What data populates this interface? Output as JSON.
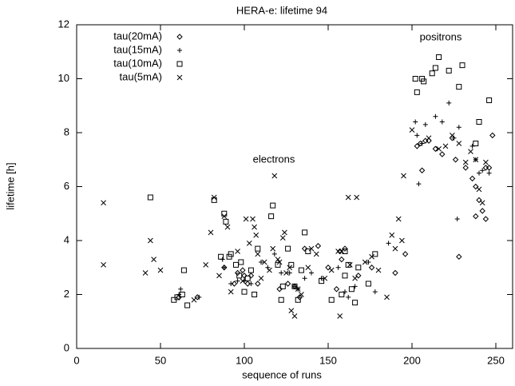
{
  "chart_data": {
    "type": "scatter",
    "title": "HERA-e: lifetime 94",
    "xlabel": "sequence of runs",
    "ylabel": "lifetime [h]",
    "annotations": [
      "electrons",
      "positrons"
    ],
    "xlim": [
      0,
      260
    ],
    "ylim": [
      0,
      12
    ],
    "xticks": [
      0,
      50,
      100,
      150,
      200,
      250
    ],
    "yticks": [
      0,
      2,
      4,
      6,
      8,
      10,
      12
    ],
    "legend": "upper left",
    "series": [
      {
        "name": "tau(20mA)",
        "marker": "diamond",
        "color": "#000000",
        "x": [
          61,
          72,
          88,
          94,
          96,
          99,
          100,
          102,
          104,
          108,
          121,
          126,
          130,
          133,
          136,
          144,
          150,
          155,
          157,
          158,
          160,
          168,
          176,
          190,
          196,
          203,
          205,
          206,
          208,
          210,
          214,
          218,
          224,
          226,
          228,
          232,
          236,
          238,
          240,
          242,
          244,
          244,
          246,
          248,
          238
        ],
        "y": [
          1.9,
          1.9,
          3.0,
          2.4,
          2.8,
          2.9,
          2.7,
          2.4,
          2.7,
          2.4,
          2.2,
          2.4,
          2.3,
          1.9,
          3.7,
          3.8,
          3.0,
          2.2,
          3.6,
          3.3,
          3.7,
          2.7,
          3.0,
          2.8,
          3.5,
          7.5,
          7.6,
          6.6,
          7.7,
          7.7,
          7.4,
          7.2,
          7.8,
          7.0,
          3.4,
          6.7,
          6.3,
          6.0,
          5.5,
          5.1,
          4.8,
          6.7,
          6.7,
          7.9,
          4.9
        ]
      },
      {
        "name": "tau(15mA)",
        "marker": "plus",
        "color": "#000000",
        "x": [
          61,
          62,
          73,
          87,
          88,
          92,
          96,
          100,
          104,
          110,
          114,
          118,
          122,
          127,
          130,
          132,
          136,
          140,
          146,
          156,
          160,
          162,
          166,
          174,
          178,
          186,
          202,
          203,
          204,
          206,
          208,
          214,
          218,
          222,
          225,
          227,
          228,
          236,
          238,
          240,
          242,
          246
        ],
        "y": [
          2.0,
          2.2,
          1.9,
          3.3,
          3.0,
          2.4,
          2.5,
          2.5,
          2.4,
          3.2,
          3.0,
          3.5,
          2.8,
          2.8,
          2.3,
          2.2,
          2.6,
          2.8,
          2.6,
          3.0,
          2.1,
          1.9,
          2.3,
          3.2,
          2.1,
          3.9,
          8.4,
          7.9,
          6.1,
          7.6,
          8.3,
          8.6,
          8.4,
          9.1,
          7.8,
          4.8,
          8.2,
          7.5,
          7.0,
          6.5,
          6.6,
          6.5
        ]
      },
      {
        "name": "tau(10mA)",
        "marker": "square",
        "color": "#000000",
        "x": [
          44,
          58,
          60,
          63,
          64,
          66,
          82,
          86,
          88,
          89,
          91,
          92,
          95,
          97,
          98,
          100,
          102,
          104,
          106,
          108,
          116,
          117,
          120,
          122,
          123,
          126,
          128,
          130,
          132,
          134,
          136,
          138,
          146,
          152,
          158,
          160,
          160,
          162,
          164,
          166,
          168,
          174,
          178,
          202,
          203,
          206,
          207,
          212,
          214,
          216,
          222,
          228,
          230,
          238,
          240,
          246
        ],
        "y": [
          5.6,
          1.8,
          1.9,
          2.0,
          2.9,
          1.6,
          5.5,
          3.4,
          5.0,
          4.7,
          3.4,
          3.5,
          3.1,
          2.7,
          3.2,
          2.1,
          2.6,
          2.9,
          2.0,
          3.7,
          4.9,
          5.3,
          3.1,
          1.8,
          2.3,
          3.7,
          3.1,
          2.3,
          1.8,
          2.9,
          4.3,
          3.6,
          2.5,
          1.8,
          2.0,
          2.7,
          3.6,
          3.1,
          2.2,
          1.7,
          3.0,
          2.4,
          3.5,
          10.0,
          9.5,
          10.0,
          9.9,
          10.2,
          10.4,
          10.8,
          10.3,
          9.7,
          10.5,
          7.6,
          8.4,
          9.2
        ]
      },
      {
        "name": "tau(5mA)",
        "marker": "x",
        "color": "#000000",
        "x": [
          16,
          16,
          41,
          44,
          46,
          50,
          70,
          77,
          80,
          82,
          85,
          88,
          90,
          92,
          96,
          99,
          101,
          103,
          105,
          106,
          107,
          108,
          110,
          112,
          115,
          117,
          118,
          120,
          121,
          123,
          124,
          125,
          127,
          128,
          130,
          132,
          134,
          138,
          140,
          143,
          148,
          152,
          156,
          157,
          158,
          162,
          163,
          166,
          167,
          172,
          176,
          180,
          185,
          188,
          190,
          192,
          194,
          195,
          200,
          210,
          216,
          220,
          224,
          228,
          232,
          235,
          238,
          240,
          242,
          244
        ],
        "y": [
          5.4,
          3.1,
          2.8,
          4.0,
          3.3,
          2.9,
          1.8,
          3.1,
          4.3,
          5.6,
          2.7,
          4.9,
          4.5,
          2.1,
          3.6,
          2.5,
          4.8,
          3.9,
          4.8,
          4.5,
          4.2,
          3.5,
          2.6,
          3.2,
          2.9,
          3.7,
          6.4,
          3.3,
          3.2,
          4.1,
          4.3,
          2.8,
          3.0,
          1.4,
          1.2,
          2.2,
          2.0,
          3.0,
          3.7,
          3.5,
          2.6,
          2.9,
          3.6,
          1.2,
          3.6,
          5.6,
          3.1,
          2.6,
          5.6,
          3.2,
          3.4,
          2.9,
          1.9,
          4.2,
          3.7,
          4.8,
          4.0,
          6.4,
          8.1,
          7.8,
          7.4,
          7.5,
          7.9,
          7.6,
          6.9,
          7.3,
          7.0,
          5.9,
          5.4,
          6.9
        ]
      }
    ]
  }
}
